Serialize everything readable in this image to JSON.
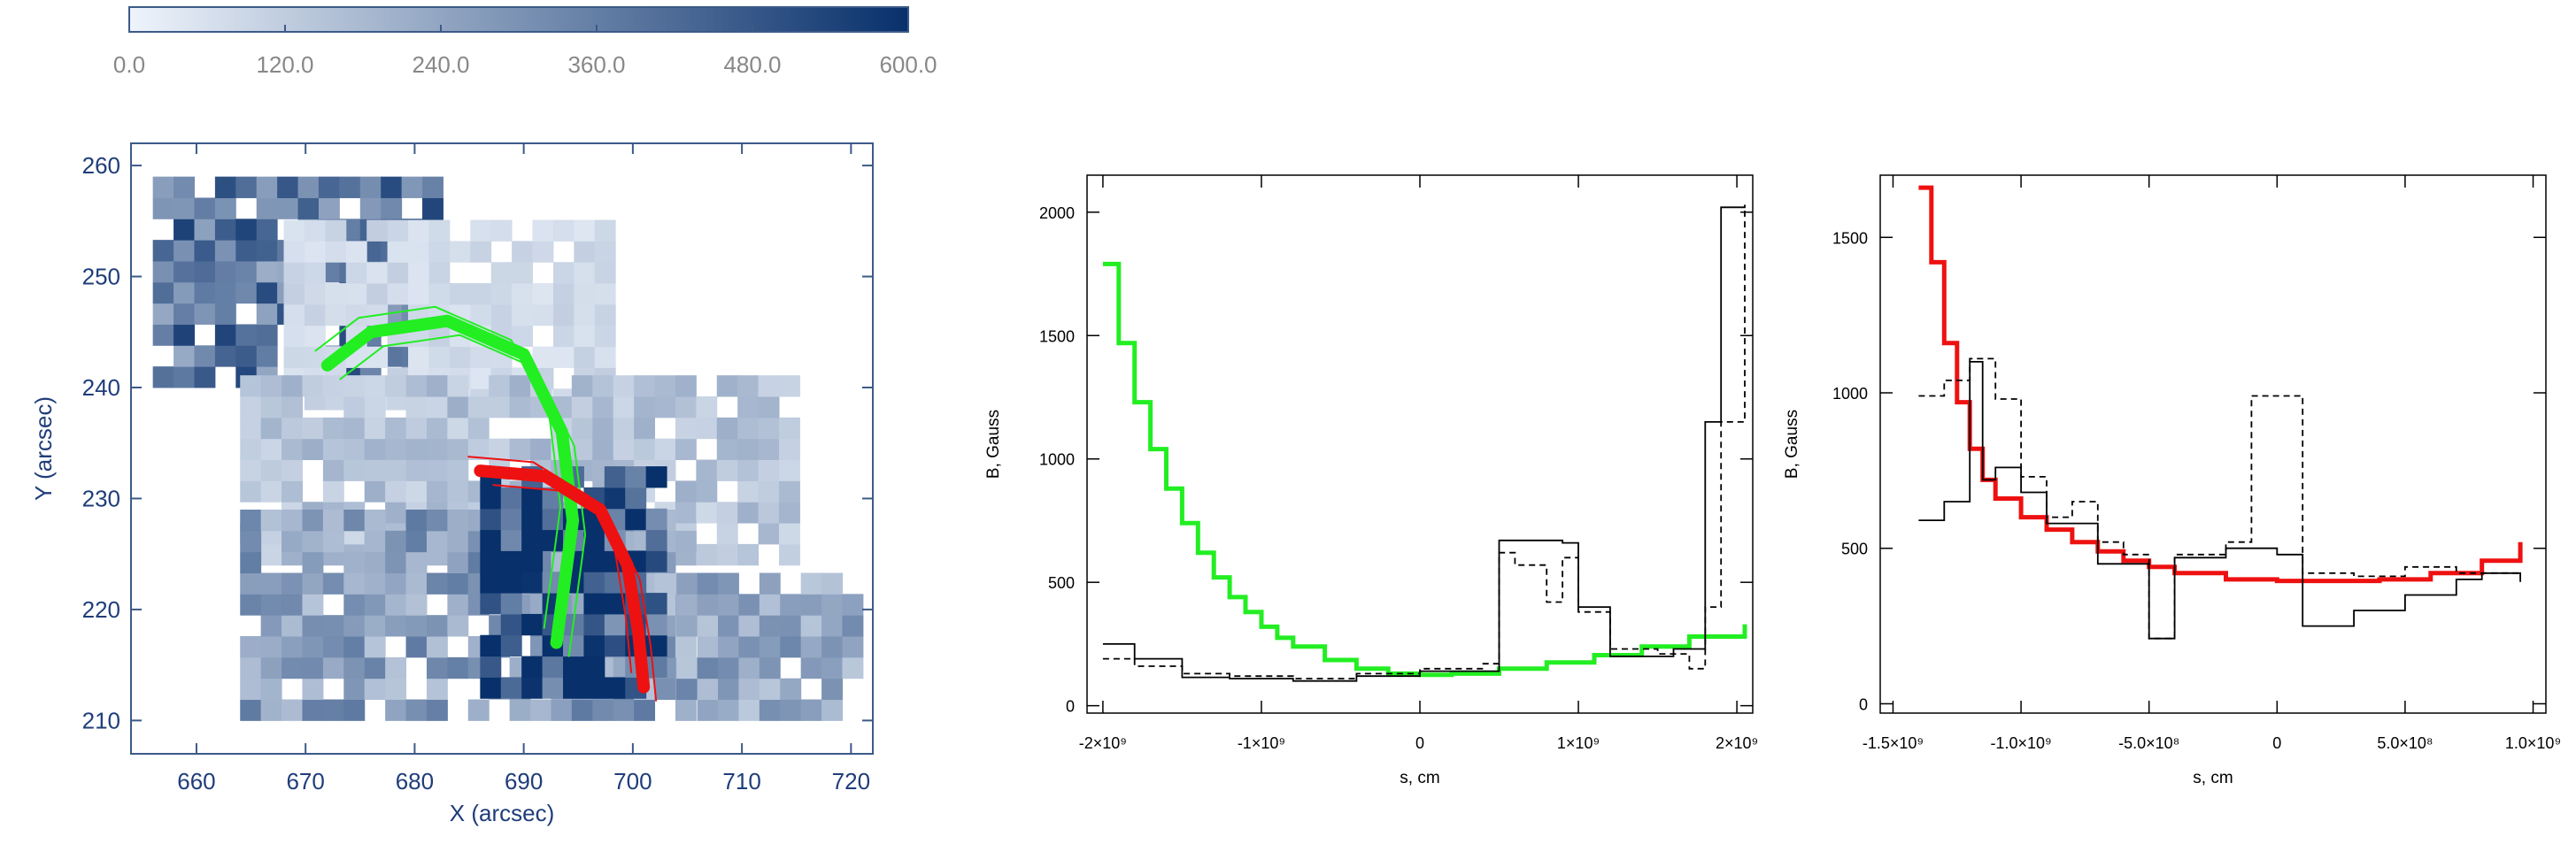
{
  "colorbar": {
    "ticks": [
      "0.0",
      "120.0",
      "240.0",
      "360.0",
      "480.0",
      "600.0"
    ],
    "min": 0,
    "max": 600,
    "color_low": "#eef4fc",
    "color_high": "#08306b"
  },
  "map": {
    "xlabel": "X (arcsec)",
    "ylabel": "Y (arcsec)",
    "xticks": [
      "660",
      "670",
      "680",
      "690",
      "700",
      "710",
      "720"
    ],
    "yticks": [
      "210",
      "220",
      "230",
      "240",
      "250",
      "260"
    ],
    "xlim": [
      654,
      722
    ],
    "ylim": [
      207,
      262
    ],
    "green_loop_color": "#22ee22",
    "red_loop_color": "#ee1111"
  },
  "chart_data": [
    {
      "type": "heatmap",
      "xlim": [
        654,
        722
      ],
      "ylim": [
        207,
        262
      ],
      "pixel_size_arcsec": 1.9,
      "color_range": [
        0,
        600
      ],
      "regions": [
        {
          "x": [
            656,
            682
          ],
          "y": [
            240,
            258
          ],
          "value": 380
        },
        {
          "x": [
            668,
            698
          ],
          "y": [
            238,
            254
          ],
          "value": 80
        },
        {
          "x": [
            664,
            714
          ],
          "y": [
            224,
            240
          ],
          "value": 150
        },
        {
          "x": [
            664,
            704
          ],
          "y": [
            210,
            228
          ],
          "value": 260
        },
        {
          "x": [
            704,
            720
          ],
          "y": [
            210,
            222
          ],
          "value": 240
        },
        {
          "x": [
            686,
            702
          ],
          "y": [
            212,
            232
          ],
          "value": 520
        }
      ],
      "loops": [
        {
          "color": "green",
          "x": [
            672,
            676,
            683,
            690,
            693.5,
            694.5,
            693
          ],
          "y": [
            242,
            245,
            246,
            243,
            236,
            228,
            217
          ]
        },
        {
          "color": "red",
          "x": [
            686,
            692,
            697,
            699.5,
            700.5,
            701
          ],
          "y": [
            232.5,
            232,
            229,
            224,
            218,
            213
          ]
        }
      ]
    },
    {
      "type": "line",
      "xlabel": "s, cm",
      "ylabel": "B, Gauss",
      "xlim": [
        -2100000000.0,
        2100000000.0
      ],
      "ylim": [
        -30,
        2150
      ],
      "xticks": [
        "-2×10⁹",
        "-1×10⁹",
        "0",
        "1×10⁹",
        "2×10⁹"
      ],
      "yticks": [
        "0",
        "500",
        "1000",
        "1500",
        "2000"
      ],
      "series": [
        {
          "color": "#22ee22",
          "style": "step-thick",
          "x": [
            -2000000000.0,
            -1900000000.0,
            -1800000000.0,
            -1700000000.0,
            -1600000000.0,
            -1500000000.0,
            -1400000000.0,
            -1300000000.0,
            -1200000000.0,
            -1100000000.0,
            -1000000000.0,
            -900000000.0,
            -800000000.0,
            -600000000.0,
            -400000000.0,
            -200000000.0,
            0,
            200000000.0,
            500000000.0,
            800000000.0,
            1100000000.0,
            1400000000.0,
            1700000000.0,
            2050000000.0
          ],
          "y": [
            1790,
            1470,
            1230,
            1040,
            880,
            740,
            620,
            520,
            440,
            380,
            320,
            275,
            240,
            185,
            150,
            130,
            125,
            130,
            150,
            175,
            205,
            240,
            280,
            330
          ]
        },
        {
          "color": "#000000",
          "style": "step-solid",
          "x": [
            -2000000000.0,
            -1800000000.0,
            -1500000000.0,
            -1200000000.0,
            -800000000.0,
            -400000000.0,
            0,
            400000000.0,
            500000000.0,
            900000000.0,
            1000000000.0,
            1200000000.0,
            1400000000.0,
            1600000000.0,
            1800000000.0,
            1900000000.0,
            2050000000.0
          ],
          "y": [
            250,
            190,
            115,
            110,
            100,
            120,
            140,
            140,
            670,
            660,
            400,
            200,
            200,
            230,
            1150,
            2020,
            2030
          ]
        },
        {
          "color": "#000000",
          "style": "step-dashed",
          "x": [
            -2000000000.0,
            -1800000000.0,
            -1500000000.0,
            -1200000000.0,
            -800000000.0,
            -400000000.0,
            0,
            400000000.0,
            500000000.0,
            600000000.0,
            800000000.0,
            900000000.0,
            1000000000.0,
            1200000000.0,
            1500000000.0,
            1700000000.0,
            1800000000.0,
            1900000000.0,
            2050000000.0
          ],
          "y": [
            190,
            160,
            130,
            120,
            110,
            130,
            150,
            170,
            620,
            570,
            420,
            600,
            380,
            230,
            210,
            150,
            400,
            1150,
            2030
          ]
        }
      ]
    },
    {
      "type": "line",
      "xlabel": "s, cm",
      "ylabel": "B, Gauss",
      "xlim": [
        -1550000000.0,
        1050000000.0
      ],
      "ylim": [
        -30,
        1700
      ],
      "xticks": [
        "-1.5×10⁹",
        "-1.0×10⁹",
        "-5.0×10⁸",
        "0",
        "5.0×10⁸",
        "1.0×10⁹"
      ],
      "yticks": [
        "0",
        "500",
        "1000",
        "1500"
      ],
      "series": [
        {
          "color": "#ee1111",
          "style": "step-thick",
          "x": [
            -1400000000.0,
            -1350000000.0,
            -1300000000.0,
            -1250000000.0,
            -1200000000.0,
            -1150000000.0,
            -1100000000.0,
            -1000000000.0,
            -900000000.0,
            -800000000.0,
            -700000000.0,
            -600000000.0,
            -500000000.0,
            -400000000.0,
            -200000000.0,
            0,
            200000000.0,
            400000000.0,
            600000000.0,
            800000000.0,
            950000000.0
          ],
          "y": [
            1660,
            1420,
            1160,
            970,
            820,
            720,
            660,
            600,
            560,
            520,
            490,
            460,
            440,
            420,
            400,
            395,
            395,
            400,
            420,
            460,
            520
          ]
        },
        {
          "color": "#000000",
          "style": "step-solid",
          "x": [
            -1400000000.0,
            -1300000000.0,
            -1200000000.0,
            -1150000000.0,
            -1100000000.0,
            -1000000000.0,
            -900000000.0,
            -700000000.0,
            -500000000.0,
            -400000000.0,
            -200000000.0,
            0,
            100000000.0,
            300000000.0,
            500000000.0,
            700000000.0,
            800000000.0,
            950000000.0
          ],
          "y": [
            590,
            650,
            1100,
            720,
            760,
            680,
            580,
            450,
            210,
            470,
            500,
            480,
            250,
            300,
            350,
            400,
            420,
            410
          ]
        },
        {
          "color": "#000000",
          "style": "step-dashed",
          "x": [
            -1400000000.0,
            -1300000000.0,
            -1200000000.0,
            -1100000000.0,
            -1000000000.0,
            -900000000.0,
            -800000000.0,
            -700000000.0,
            -600000000.0,
            -500000000.0,
            -400000000.0,
            -200000000.0,
            -100000000.0,
            0,
            100000000.0,
            300000000.0,
            500000000.0,
            700000000.0,
            950000000.0
          ],
          "y": [
            990,
            1040,
            1110,
            980,
            730,
            600,
            650,
            520,
            480,
            210,
            480,
            520,
            990,
            990,
            420,
            410,
            440,
            420,
            380
          ]
        }
      ]
    }
  ]
}
